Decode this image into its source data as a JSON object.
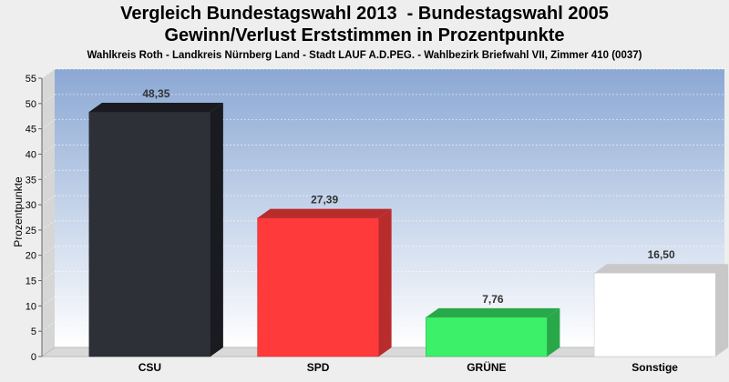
{
  "header": {
    "title_line1": "Vergleich Bundestagswahl 2013  - Bundestagswahl 2005",
    "title_line2": "Gewinn/Verlust Erststimmen in Prozentpunkte",
    "subtitle": "Wahlkreis Roth - Landkreis Nürnberg Land - Stadt LAUF A.D.PEG. - Wahlbezirk Briefwahl VII, Zimmer 410 (0037)"
  },
  "chart_data": {
    "type": "bar",
    "title": "Vergleich Bundestagswahl 2013  - Bundestagswahl 2005 / Gewinn/Verlust Erststimmen in Prozentpunkte",
    "subtitle": "Wahlkreis Roth - Landkreis Nürnberg Land - Stadt LAUF A.D.PEG. - Wahlbezirk Briefwahl VII, Zimmer 410 (0037)",
    "xlabel": "",
    "ylabel": "Prozentpunkte",
    "ylim": [
      0,
      55
    ],
    "yticks": [
      0,
      5,
      10,
      15,
      20,
      25,
      30,
      35,
      40,
      45,
      50,
      55
    ],
    "grid": true,
    "legend": "none",
    "categories": [
      "CSU",
      "SPD",
      "GRÜNE",
      "Sonstige"
    ],
    "values": [
      48.35,
      27.39,
      7.76,
      16.5
    ],
    "value_labels": [
      "48,35",
      "27,39",
      "7,76",
      "16,50"
    ],
    "colors": [
      "#2e3038",
      "#ff3a3a",
      "#3df06a",
      "#ffffff"
    ],
    "side_colors": [
      "#1a1b20",
      "#b82c2c",
      "#29a84a",
      "#c8c8c8"
    ],
    "background_top": "#8ba8d4",
    "background_bottom": "#ffffff"
  }
}
